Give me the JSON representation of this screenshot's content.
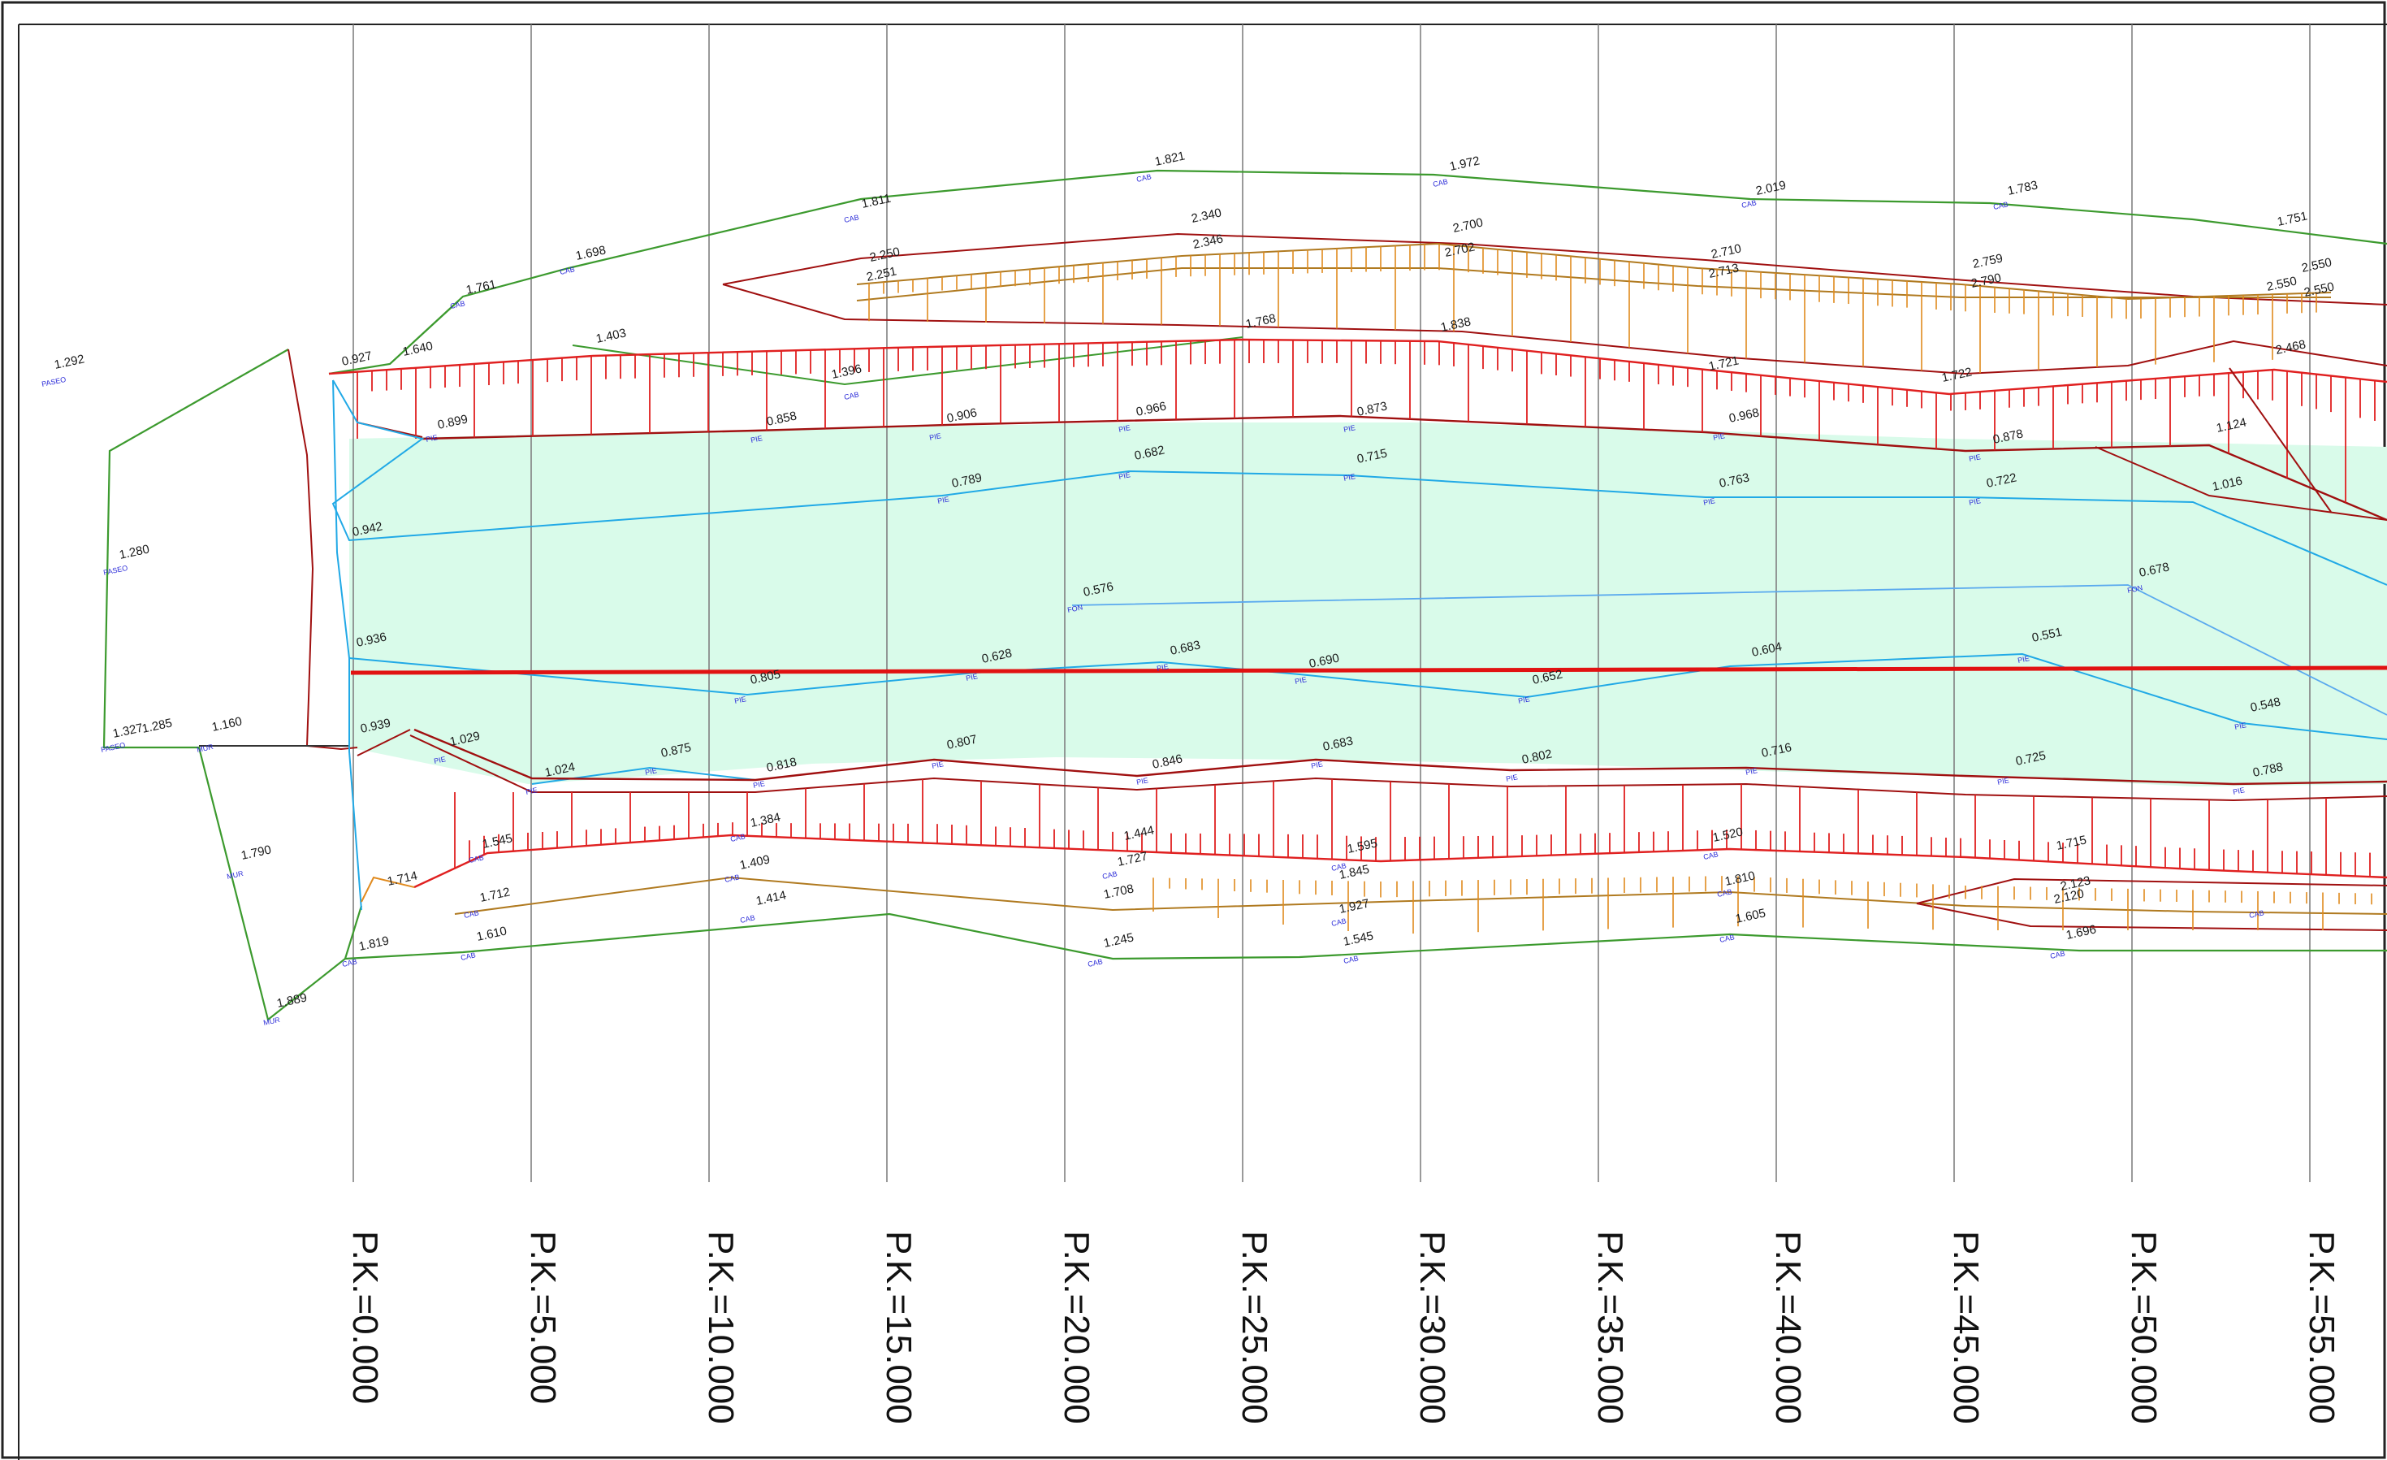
{
  "drawing": {
    "station_labels": [
      "P.K.=0.000",
      "P.K.=5.000",
      "P.K.=10.000",
      "P.K.=15.000",
      "P.K.=20.000",
      "P.K.=25.000",
      "P.K.=30.000",
      "P.K.=35.000",
      "P.K.=40.000",
      "P.K.=45.000",
      "P.K.=50.000",
      "P.K.=55.000"
    ],
    "colors": {
      "road_fill": "#d9fbea",
      "green_line": "#3c9a2e",
      "edge_red": "#a01010",
      "axis_red": "#e11212",
      "slope_red": "#e02020",
      "orange": "#e08a1e",
      "brown": "#b07a20",
      "cyan": "#21a9e6",
      "pk_line": "#808080",
      "point_code": "#2b2bd8"
    },
    "point_codes": [
      "PASEO",
      "CAB",
      "PIE",
      "FON",
      "MUR"
    ],
    "elevations": {
      "far_left": [
        "1.292",
        "1.280",
        "1.327",
        "1.285",
        "1.160",
        "1.790",
        "1.889"
      ],
      "top_boundary": [
        "0.927",
        "1.761",
        "1.698",
        "1.811",
        "1.821",
        "1.972",
        "2.019",
        "1.783",
        "1.751"
      ],
      "top_ditch": [
        "2.250",
        "2.251",
        "2.340",
        "2.346",
        "2.700",
        "2.702",
        "2.710",
        "2.713",
        "2.759",
        "2.790",
        "2.550",
        "2.550",
        "2.550"
      ],
      "top_crest": [
        "1.640",
        "1.403",
        "1.396",
        "1.768",
        "1.838",
        "1.721",
        "1.722",
        "2.468"
      ],
      "top_toe": [
        "0.899",
        "0.858",
        "0.906",
        "0.966",
        "0.873",
        "0.968",
        "0.878",
        "1.124"
      ],
      "cyan_upper": [
        "0.942",
        "0.789",
        "0.682",
        "0.715",
        "0.763",
        "0.722",
        "1.016"
      ],
      "fon": [
        "0.576",
        "0.678"
      ],
      "cyan_center": [
        "0.936",
        "0.805",
        "0.628",
        "0.683",
        "0.690",
        "0.652",
        "0.604",
        "0.551",
        "0.548"
      ],
      "bottom_toe": [
        "0.939",
        "1.029",
        "1.024",
        "0.875",
        "0.818",
        "0.807",
        "0.846",
        "0.683",
        "0.802",
        "0.716",
        "0.725",
        "0.788"
      ],
      "bottom_crest": [
        "1.545",
        "1.384",
        "1.444",
        "1.595",
        "1.520",
        "1.715",
        "1.714"
      ],
      "bottom_ditch": [
        "1.727",
        "1.712",
        "1.409",
        "1.708",
        "1.845",
        "1.810",
        "1.927",
        "2.123",
        "2.120"
      ],
      "bottom_boundary": [
        "1.819",
        "1.610",
        "1.414",
        "1.245",
        "1.545",
        "1.605",
        "1.696"
      ]
    }
  }
}
